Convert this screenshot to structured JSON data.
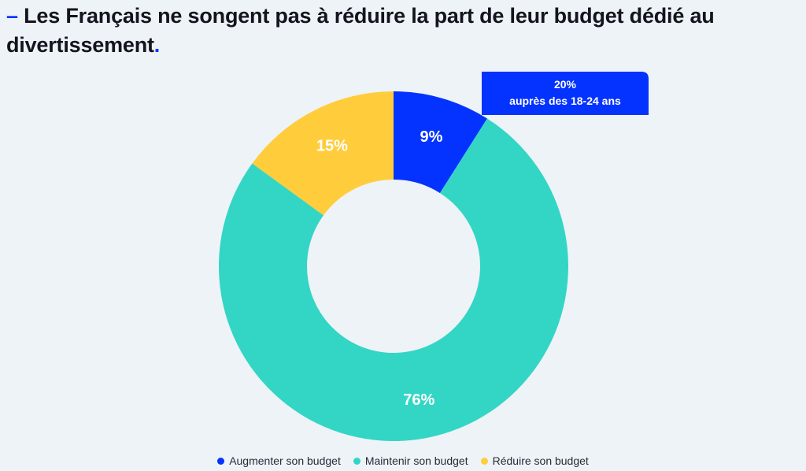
{
  "title": {
    "dash": "–",
    "text": "Les Français ne songent pas à réduire la part de leur budget dédié au divertissement",
    "period": "."
  },
  "colors": {
    "background": "#eef3f8",
    "accent": "#0433ff",
    "increase": "#0433ff",
    "maintain": "#33d6c4",
    "reduce": "#ffcd3c",
    "label_text": "#ffffff"
  },
  "chart_data": {
    "type": "pie",
    "variant": "donut",
    "title": "Les Français ne songent pas à réduire la part de leur budget dédié au divertissement",
    "unit": "%",
    "legend_position": "bottom-center",
    "slices": [
      {
        "name": "Augmenter son budget",
        "value": 9,
        "label": "9%",
        "color": "#0433ff"
      },
      {
        "name": "Maintenir son budget",
        "value": 76,
        "label": "76%",
        "color": "#33d6c4"
      },
      {
        "name": "Réduire son budget",
        "value": 15,
        "label": "15%",
        "color": "#ffcd3c"
      }
    ],
    "annotation": {
      "target": "Augmenter son budget",
      "lines": [
        "20%",
        "auprès des 18-24 ans"
      ]
    }
  }
}
